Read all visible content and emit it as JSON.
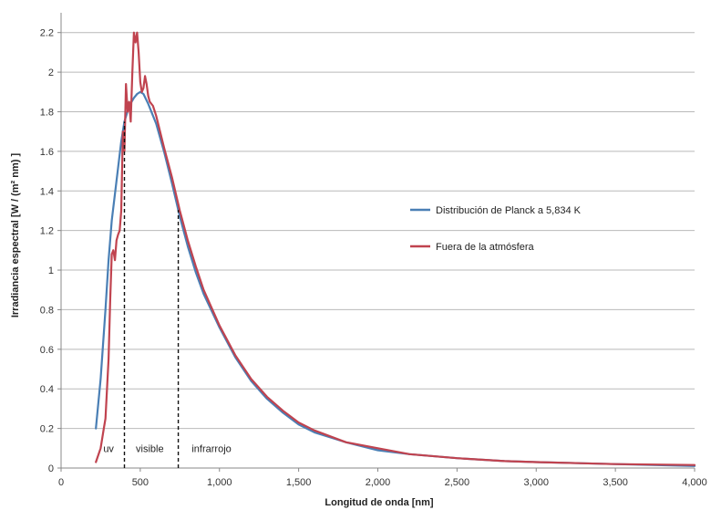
{
  "chart_data": {
    "type": "line",
    "title": "",
    "xlabel": "Longitud de onda [nm]",
    "ylabel": "Irradiancia espectral [W / (m² nm) ]",
    "xlim": [
      0,
      4000
    ],
    "ylim": [
      0,
      2.3
    ],
    "grid": "horizontal",
    "legend_position": "right",
    "x_ticks": [
      {
        "value": 0,
        "label": "0"
      },
      {
        "value": 500,
        "label": "500"
      },
      {
        "value": 1000,
        "label": "1,000"
      },
      {
        "value": 1500,
        "label": "1,500"
      },
      {
        "value": 2000,
        "label": "2,000"
      },
      {
        "value": 2500,
        "label": "2,500"
      },
      {
        "value": 3000,
        "label": "3,000"
      },
      {
        "value": 3500,
        "label": "3,500"
      },
      {
        "value": 4000,
        "label": "4,000"
      }
    ],
    "y_ticks": [
      {
        "value": 0,
        "label": "0"
      },
      {
        "value": 0.2,
        "label": "0.2"
      },
      {
        "value": 0.4,
        "label": "0.4"
      },
      {
        "value": 0.6,
        "label": "0.6"
      },
      {
        "value": 0.8,
        "label": "0.8"
      },
      {
        "value": 1.0,
        "label": "1"
      },
      {
        "value": 1.2,
        "label": "1.2"
      },
      {
        "value": 1.4,
        "label": "1.4"
      },
      {
        "value": 1.6,
        "label": "1.6"
      },
      {
        "value": 1.8,
        "label": "1.8"
      },
      {
        "value": 2.0,
        "label": "2"
      },
      {
        "value": 2.2,
        "label": "2.2"
      }
    ],
    "series": [
      {
        "name": "Distribución de Planck a 5,834 K",
        "color": "#4a7fb5",
        "x": [
          220,
          250,
          280,
          300,
          320,
          350,
          380,
          400,
          430,
          460,
          480,
          500,
          520,
          550,
          600,
          650,
          700,
          750,
          800,
          850,
          900,
          1000,
          1100,
          1200,
          1300,
          1400,
          1500,
          1600,
          1800,
          2000,
          2200,
          2500,
          2800,
          3000,
          3500,
          4000
        ],
        "y": [
          0.2,
          0.45,
          0.8,
          1.05,
          1.25,
          1.45,
          1.65,
          1.75,
          1.83,
          1.87,
          1.89,
          1.9,
          1.89,
          1.84,
          1.74,
          1.6,
          1.44,
          1.27,
          1.12,
          0.99,
          0.88,
          0.71,
          0.56,
          0.44,
          0.35,
          0.28,
          0.22,
          0.18,
          0.13,
          0.09,
          0.07,
          0.05,
          0.035,
          0.03,
          0.02,
          0.01
        ]
      },
      {
        "name": "Fuera de la atmósfera",
        "color": "#c0434f",
        "x": [
          220,
          250,
          270,
          280,
          290,
          300,
          310,
          320,
          330,
          340,
          350,
          360,
          370,
          380,
          390,
          400,
          410,
          420,
          430,
          440,
          450,
          460,
          470,
          480,
          490,
          500,
          510,
          520,
          530,
          540,
          550,
          560,
          580,
          600,
          650,
          700,
          750,
          800,
          850,
          900,
          1000,
          1100,
          1200,
          1300,
          1400,
          1500,
          1600,
          1800,
          2000,
          2200,
          2500,
          2800,
          3000,
          3500,
          4000
        ],
        "y": [
          0.03,
          0.1,
          0.2,
          0.25,
          0.4,
          0.55,
          0.85,
          1.08,
          1.1,
          1.05,
          1.15,
          1.18,
          1.2,
          1.3,
          1.7,
          1.6,
          1.94,
          1.8,
          1.85,
          1.75,
          2.0,
          2.2,
          2.15,
          2.2,
          2.1,
          1.95,
          1.9,
          1.92,
          1.98,
          1.94,
          1.88,
          1.85,
          1.83,
          1.78,
          1.62,
          1.47,
          1.3,
          1.15,
          1.02,
          0.9,
          0.72,
          0.57,
          0.45,
          0.36,
          0.29,
          0.23,
          0.19,
          0.13,
          0.1,
          0.07,
          0.05,
          0.035,
          0.03,
          0.02,
          0.015
        ]
      }
    ],
    "annotations": [
      {
        "text": "uv",
        "x": 300,
        "y": 0.1
      },
      {
        "text": "visible",
        "x": 560,
        "y": 0.1
      },
      {
        "text": "infrarrojo",
        "x": 950,
        "y": 0.1
      }
    ],
    "region_boundaries_nm": [
      400,
      740
    ]
  }
}
